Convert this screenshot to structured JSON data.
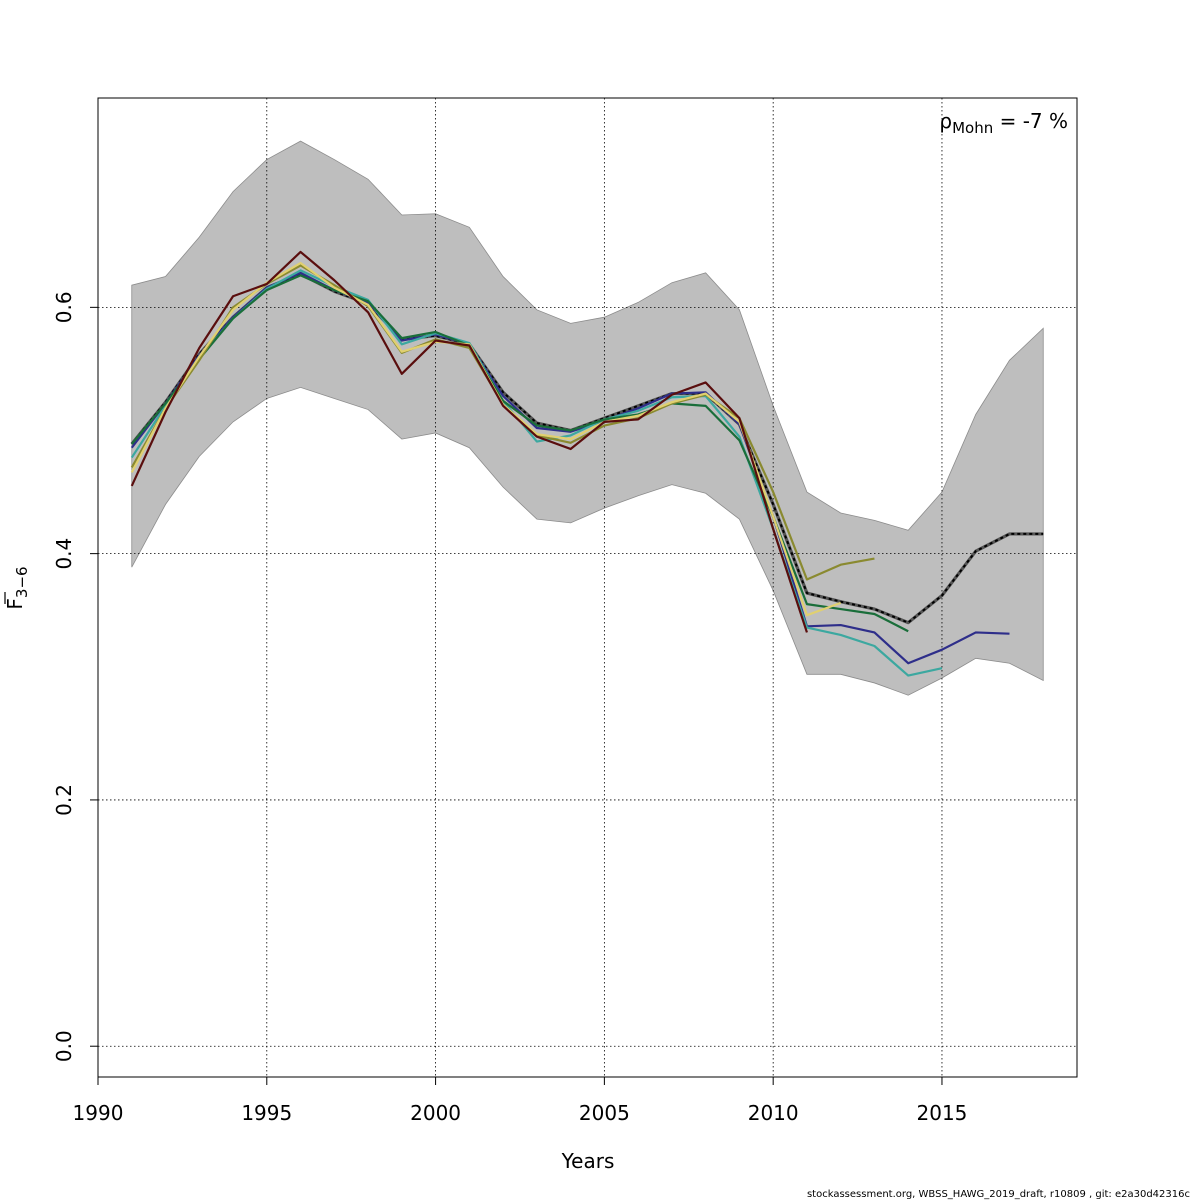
{
  "chart_data": {
    "type": "line",
    "xlabel": "Years",
    "ylabel": "F",
    "ylabel_sub": "3−6",
    "xlim": [
      1990,
      2019
    ],
    "ylim": [
      -0.025,
      0.77
    ],
    "xticks": [
      1990,
      1995,
      2000,
      2005,
      2010,
      2015
    ],
    "yticks": [
      0.0,
      0.2,
      0.4,
      0.6
    ],
    "ytick_labels": [
      "0.0",
      "0.2",
      "0.4",
      "0.6"
    ],
    "grid": true,
    "annotation": {
      "rho": "ρ",
      "sub": "Mohn",
      "text": " = -7 %"
    },
    "confidence_band": {
      "color": "#bebebe",
      "x": [
        1991,
        1992,
        1993,
        1994,
        1995,
        1996,
        1997,
        1998,
        1999,
        2000,
        2001,
        2002,
        2003,
        2004,
        2005,
        2006,
        2007,
        2008,
        2009,
        2010,
        2011,
        2012,
        2013,
        2014,
        2015,
        2016,
        2017,
        2018
      ],
      "upper": [
        0.618,
        0.625,
        0.657,
        0.694,
        0.72,
        0.735,
        0.72,
        0.704,
        0.675,
        0.676,
        0.665,
        0.625,
        0.598,
        0.587,
        0.592,
        0.604,
        0.62,
        0.628,
        0.598,
        0.52,
        0.45,
        0.433,
        0.427,
        0.419,
        0.45,
        0.513,
        0.557,
        0.583
      ],
      "lower": [
        0.389,
        0.44,
        0.479,
        0.507,
        0.526,
        0.535,
        0.526,
        0.517,
        0.493,
        0.498,
        0.486,
        0.454,
        0.428,
        0.425,
        0.437,
        0.447,
        0.456,
        0.449,
        0.428,
        0.37,
        0.302,
        0.302,
        0.295,
        0.285,
        0.299,
        0.315,
        0.311,
        0.297
      ]
    },
    "series": [
      {
        "color": "#000000",
        "dashed": true,
        "x": [
          1991,
          1992,
          1993,
          1994,
          1995,
          1996,
          1997,
          1998,
          1999,
          2000,
          2001,
          2002,
          2003,
          2004,
          2005,
          2006,
          2007,
          2008,
          2009,
          2010,
          2011,
          2012,
          2013,
          2014,
          2015,
          2016,
          2017,
          2018
        ],
        "values": [
          0.489,
          0.523,
          0.562,
          0.592,
          0.616,
          0.627,
          0.613,
          0.603,
          0.574,
          0.577,
          0.57,
          0.531,
          0.506,
          0.5,
          0.51,
          0.52,
          0.53,
          0.53,
          0.505,
          0.44,
          0.368,
          0.361,
          0.355,
          0.344,
          0.366,
          0.402,
          0.416,
          0.416
        ]
      },
      {
        "color": "#2e2e8a",
        "x": [
          1991,
          1992,
          1993,
          1994,
          1995,
          1996,
          1997,
          1998,
          1999,
          2000,
          2001,
          2002,
          2003,
          2004,
          2005,
          2006,
          2007,
          2008,
          2009,
          2010,
          2011,
          2012,
          2013,
          2014,
          2015,
          2016,
          2017
        ],
        "values": [
          0.486,
          0.522,
          0.561,
          0.592,
          0.616,
          0.628,
          0.614,
          0.604,
          0.573,
          0.578,
          0.57,
          0.528,
          0.502,
          0.499,
          0.508,
          0.518,
          0.53,
          0.531,
          0.505,
          0.43,
          0.341,
          0.342,
          0.336,
          0.311,
          0.322,
          0.336,
          0.335
        ]
      },
      {
        "color": "#3ca8a0",
        "x": [
          1991,
          1992,
          1993,
          1994,
          1995,
          1996,
          1997,
          1998,
          1999,
          2000,
          2001,
          2002,
          2003,
          2004,
          2005,
          2006,
          2007,
          2008,
          2009,
          2010,
          2011,
          2012,
          2013,
          2014,
          2015
        ],
        "values": [
          0.478,
          0.52,
          0.559,
          0.591,
          0.615,
          0.63,
          0.617,
          0.606,
          0.57,
          0.579,
          0.571,
          0.524,
          0.491,
          0.496,
          0.509,
          0.516,
          0.527,
          0.528,
          0.495,
          0.42,
          0.34,
          0.334,
          0.325,
          0.301,
          0.307
        ]
      },
      {
        "color": "#1a6e3a",
        "x": [
          1991,
          1992,
          1993,
          1994,
          1995,
          1996,
          1997,
          1998,
          1999,
          2000,
          2001,
          2002,
          2003,
          2004,
          2005,
          2006,
          2007,
          2008,
          2009,
          2010,
          2011,
          2012,
          2013,
          2014
        ],
        "values": [
          0.489,
          0.522,
          0.558,
          0.591,
          0.614,
          0.626,
          0.614,
          0.605,
          0.575,
          0.58,
          0.569,
          0.524,
          0.504,
          0.5,
          0.509,
          0.513,
          0.522,
          0.52,
          0.492,
          0.43,
          0.359,
          0.355,
          0.351,
          0.337
        ]
      },
      {
        "color": "#8a8a30",
        "x": [
          1991,
          1992,
          1993,
          1994,
          1995,
          1996,
          1997,
          1998,
          1999,
          2000,
          2001,
          2002,
          2003,
          2004,
          2005,
          2006,
          2007,
          2008,
          2009,
          2010,
          2011,
          2012,
          2013
        ],
        "values": [
          0.47,
          0.518,
          0.557,
          0.6,
          0.619,
          0.634,
          0.618,
          0.601,
          0.563,
          0.574,
          0.567,
          0.521,
          0.496,
          0.49,
          0.504,
          0.51,
          0.522,
          0.529,
          0.51,
          0.45,
          0.379,
          0.391,
          0.396
        ]
      },
      {
        "color": "#e0d070",
        "x": [
          1991,
          1992,
          1993,
          1994,
          1995,
          1996,
          1997,
          1998,
          1999,
          2000,
          2001,
          2002,
          2003,
          2004,
          2005,
          2006,
          2007,
          2008,
          2009,
          2010,
          2011,
          2012
        ],
        "values": [
          0.466,
          0.518,
          0.56,
          0.598,
          0.62,
          0.636,
          0.616,
          0.602,
          0.564,
          0.572,
          0.57,
          0.521,
          0.497,
          0.493,
          0.507,
          0.512,
          0.523,
          0.53,
          0.507,
          0.43,
          0.35,
          0.36
        ]
      },
      {
        "color": "#5a0e0e",
        "x": [
          1991,
          1992,
          1993,
          1994,
          1995,
          1996,
          1997,
          1998,
          1999,
          2000,
          2001,
          2002,
          2003,
          2004,
          2005,
          2006,
          2007,
          2008,
          2009,
          2010,
          2011
        ],
        "values": [
          0.455,
          0.515,
          0.567,
          0.609,
          0.619,
          0.645,
          0.622,
          0.596,
          0.546,
          0.573,
          0.569,
          0.52,
          0.495,
          0.485,
          0.507,
          0.509,
          0.529,
          0.539,
          0.51,
          0.42,
          0.336
        ]
      }
    ]
  },
  "footer": "stockassessment.org, WBSS_HAWG_2019_draft, r10809 , git: e2a30d42316c"
}
